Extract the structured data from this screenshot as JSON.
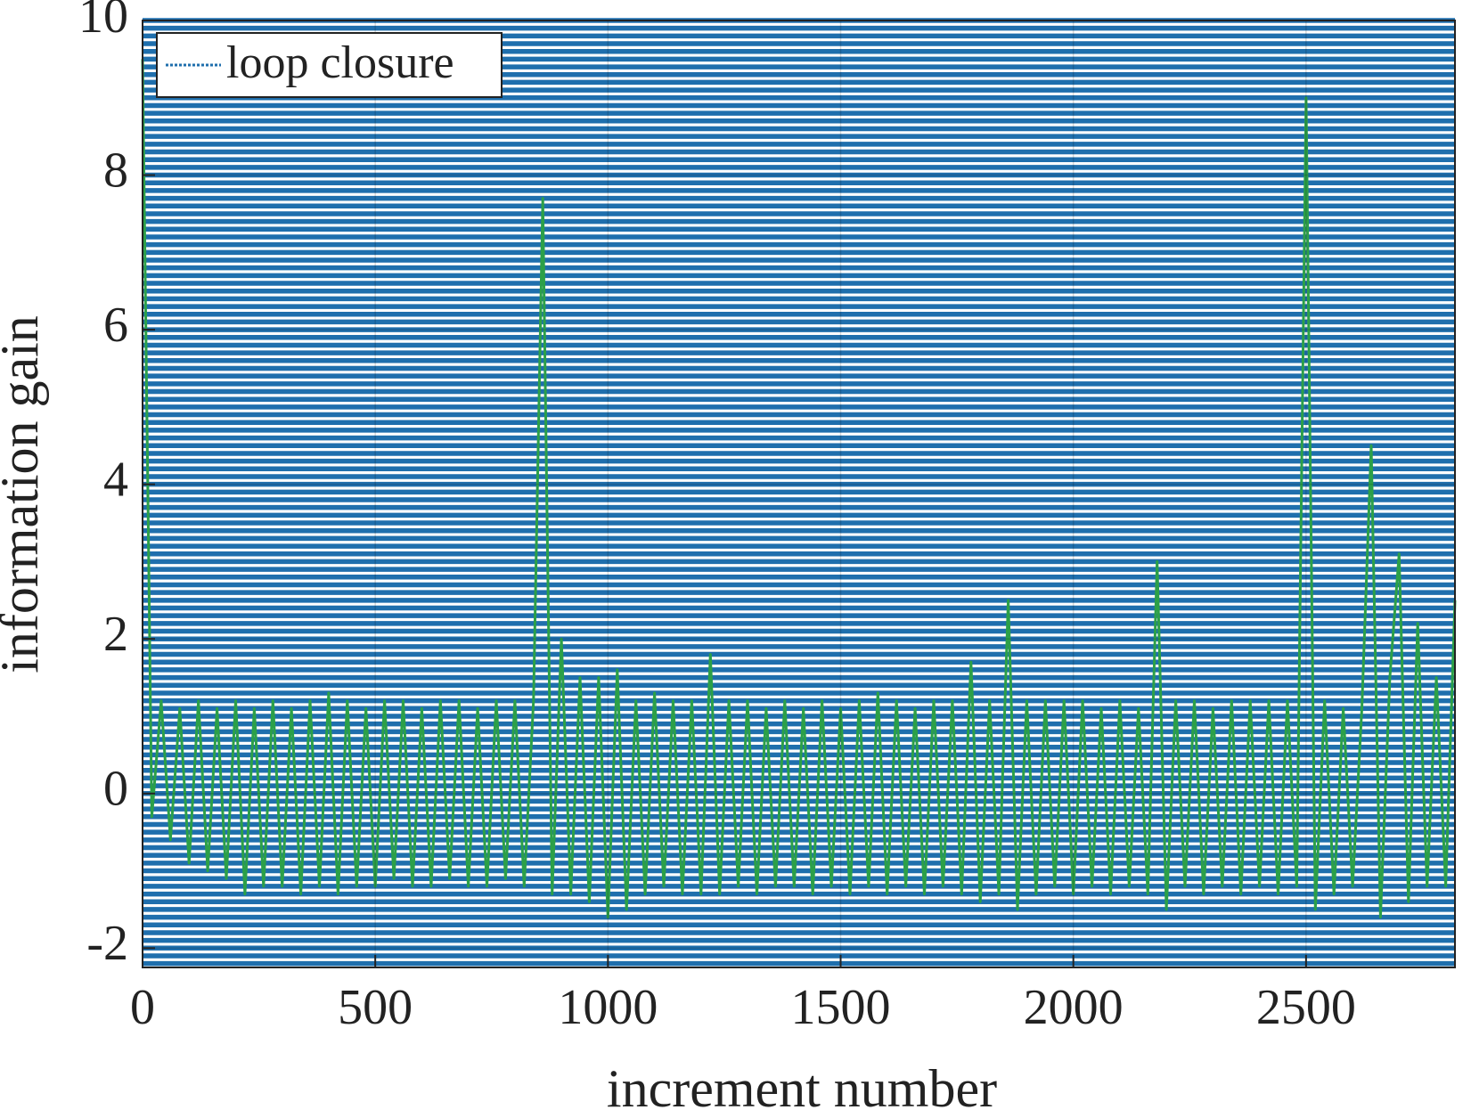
{
  "chart_data": {
    "type": "line",
    "xlabel": "increment number",
    "ylabel": "information gain",
    "xlim": [
      0,
      2820
    ],
    "ylim": [
      -2.25,
      10
    ],
    "xticks": [
      0,
      500,
      1000,
      1500,
      2000,
      2500
    ],
    "yticks": [
      -2,
      0,
      2,
      4,
      6,
      8,
      10
    ],
    "grid": true,
    "legend": "upper-left",
    "series": [
      {
        "name": "loop closure",
        "color": "#1f6fad",
        "values": [
          -2.2,
          -2.1,
          -2.0,
          -1.9,
          -1.8,
          -1.7,
          -1.6,
          -1.5,
          -1.4,
          -1.3,
          -1.2,
          -1.1,
          -1.0,
          -0.9,
          -0.8,
          -0.7,
          -0.6,
          -0.5,
          -0.4,
          -0.3,
          -0.2,
          -0.1,
          0,
          0.1,
          0.2,
          0.3,
          0.4,
          0.5,
          0.6,
          0.7,
          0.8,
          0.9,
          1.0,
          1.1,
          1.2,
          1.3,
          1.4,
          1.5,
          1.6,
          1.7,
          1.8,
          1.9,
          2.0,
          2.1,
          2.2,
          2.3,
          2.4,
          2.5,
          2.6,
          2.7,
          2.8,
          2.9,
          3.0,
          3.1,
          3.2,
          3.3,
          3.4,
          3.5,
          3.6,
          3.7,
          3.8,
          3.9,
          4.0,
          4.1,
          4.2,
          4.3,
          4.4,
          4.5,
          4.6,
          4.7,
          4.8,
          4.9,
          5.0,
          5.1,
          5.2,
          5.3,
          5.4,
          5.5,
          5.6,
          5.7,
          5.8,
          5.9,
          6.0,
          6.1,
          6.2,
          6.3,
          6.4,
          6.5,
          6.6,
          6.7,
          6.8,
          6.9,
          7.0,
          7.1,
          7.2,
          7.3,
          7.4,
          7.5,
          7.6,
          7.7,
          7.8,
          7.9,
          8.0,
          8.1,
          8.2,
          8.3,
          8.4,
          8.5,
          8.6,
          8.7,
          8.8,
          8.9,
          9.0,
          9.1,
          9.2,
          9.3,
          9.4,
          9.5,
          9.6,
          9.7,
          9.8,
          9.9,
          10.0
        ]
      },
      {
        "color": "#2ca048",
        "x": [
          0,
          20,
          40,
          60,
          80,
          100,
          120,
          140,
          160,
          180,
          200,
          220,
          240,
          260,
          280,
          300,
          320,
          340,
          360,
          380,
          400,
          420,
          440,
          460,
          480,
          500,
          520,
          540,
          560,
          580,
          600,
          620,
          640,
          660,
          680,
          700,
          720,
          740,
          760,
          780,
          800,
          820,
          840,
          860,
          880,
          900,
          920,
          940,
          960,
          980,
          1000,
          1020,
          1040,
          1060,
          1080,
          1100,
          1120,
          1140,
          1160,
          1180,
          1200,
          1220,
          1240,
          1260,
          1280,
          1300,
          1320,
          1340,
          1360,
          1380,
          1400,
          1420,
          1440,
          1460,
          1480,
          1500,
          1520,
          1540,
          1560,
          1580,
          1600,
          1620,
          1640,
          1660,
          1680,
          1700,
          1720,
          1740,
          1760,
          1780,
          1800,
          1820,
          1840,
          1860,
          1880,
          1900,
          1920,
          1940,
          1960,
          1980,
          2000,
          2020,
          2040,
          2060,
          2080,
          2100,
          2120,
          2140,
          2160,
          2180,
          2200,
          2220,
          2240,
          2260,
          2280,
          2300,
          2320,
          2340,
          2360,
          2380,
          2400,
          2420,
          2440,
          2460,
          2480,
          2500,
          2520,
          2540,
          2560,
          2580,
          2600,
          2620,
          2640,
          2660,
          2680,
          2700,
          2720,
          2740,
          2760,
          2780,
          2800,
          2820
        ],
        "values": [
          9.5,
          -0.3,
          1.2,
          -0.6,
          1.1,
          -0.9,
          1.2,
          -1.0,
          1.1,
          -1.1,
          1.2,
          -1.3,
          1.1,
          -1.2,
          1.2,
          -1.2,
          1.1,
          -1.3,
          1.2,
          -1.2,
          1.3,
          -1.3,
          1.2,
          -1.2,
          1.1,
          -1.2,
          1.2,
          -1.1,
          1.2,
          -1.2,
          1.1,
          -1.2,
          1.2,
          -1.1,
          1.2,
          -1.2,
          1.1,
          -1.2,
          1.2,
          -1.1,
          1.2,
          -1.2,
          1.2,
          7.7,
          -1.3,
          2.0,
          -1.3,
          1.5,
          -1.4,
          1.5,
          -1.6,
          1.6,
          -1.5,
          1.2,
          -1.3,
          1.3,
          -1.2,
          1.2,
          -1.3,
          1.2,
          -1.3,
          1.8,
          -1.3,
          1.2,
          -1.2,
          1.2,
          -1.3,
          1.1,
          -1.2,
          1.2,
          -1.2,
          1.1,
          -1.3,
          1.2,
          -1.2,
          1.1,
          -1.3,
          1.2,
          -1.2,
          1.3,
          -1.3,
          1.2,
          -1.2,
          1.1,
          -1.3,
          1.2,
          -1.2,
          1.2,
          -1.3,
          1.7,
          -1.4,
          1.2,
          -1.3,
          2.5,
          -1.5,
          1.2,
          -1.3,
          1.2,
          -1.2,
          1.2,
          -1.3,
          1.2,
          -1.2,
          1.1,
          -1.3,
          1.2,
          -1.2,
          1.1,
          -1.3,
          3.0,
          -1.5,
          1.2,
          -1.2,
          1.2,
          -1.3,
          1.1,
          -1.2,
          1.2,
          -1.3,
          1.2,
          -1.2,
          1.2,
          -1.3,
          1.2,
          -1.2,
          9.0,
          -1.5,
          1.2,
          -1.3,
          1.1,
          -1.2,
          1.1,
          4.5,
          -1.6,
          1.5,
          3.1,
          -1.4,
          2.2,
          -1.2,
          1.5,
          -1.2,
          2.5
        ]
      }
    ]
  }
}
